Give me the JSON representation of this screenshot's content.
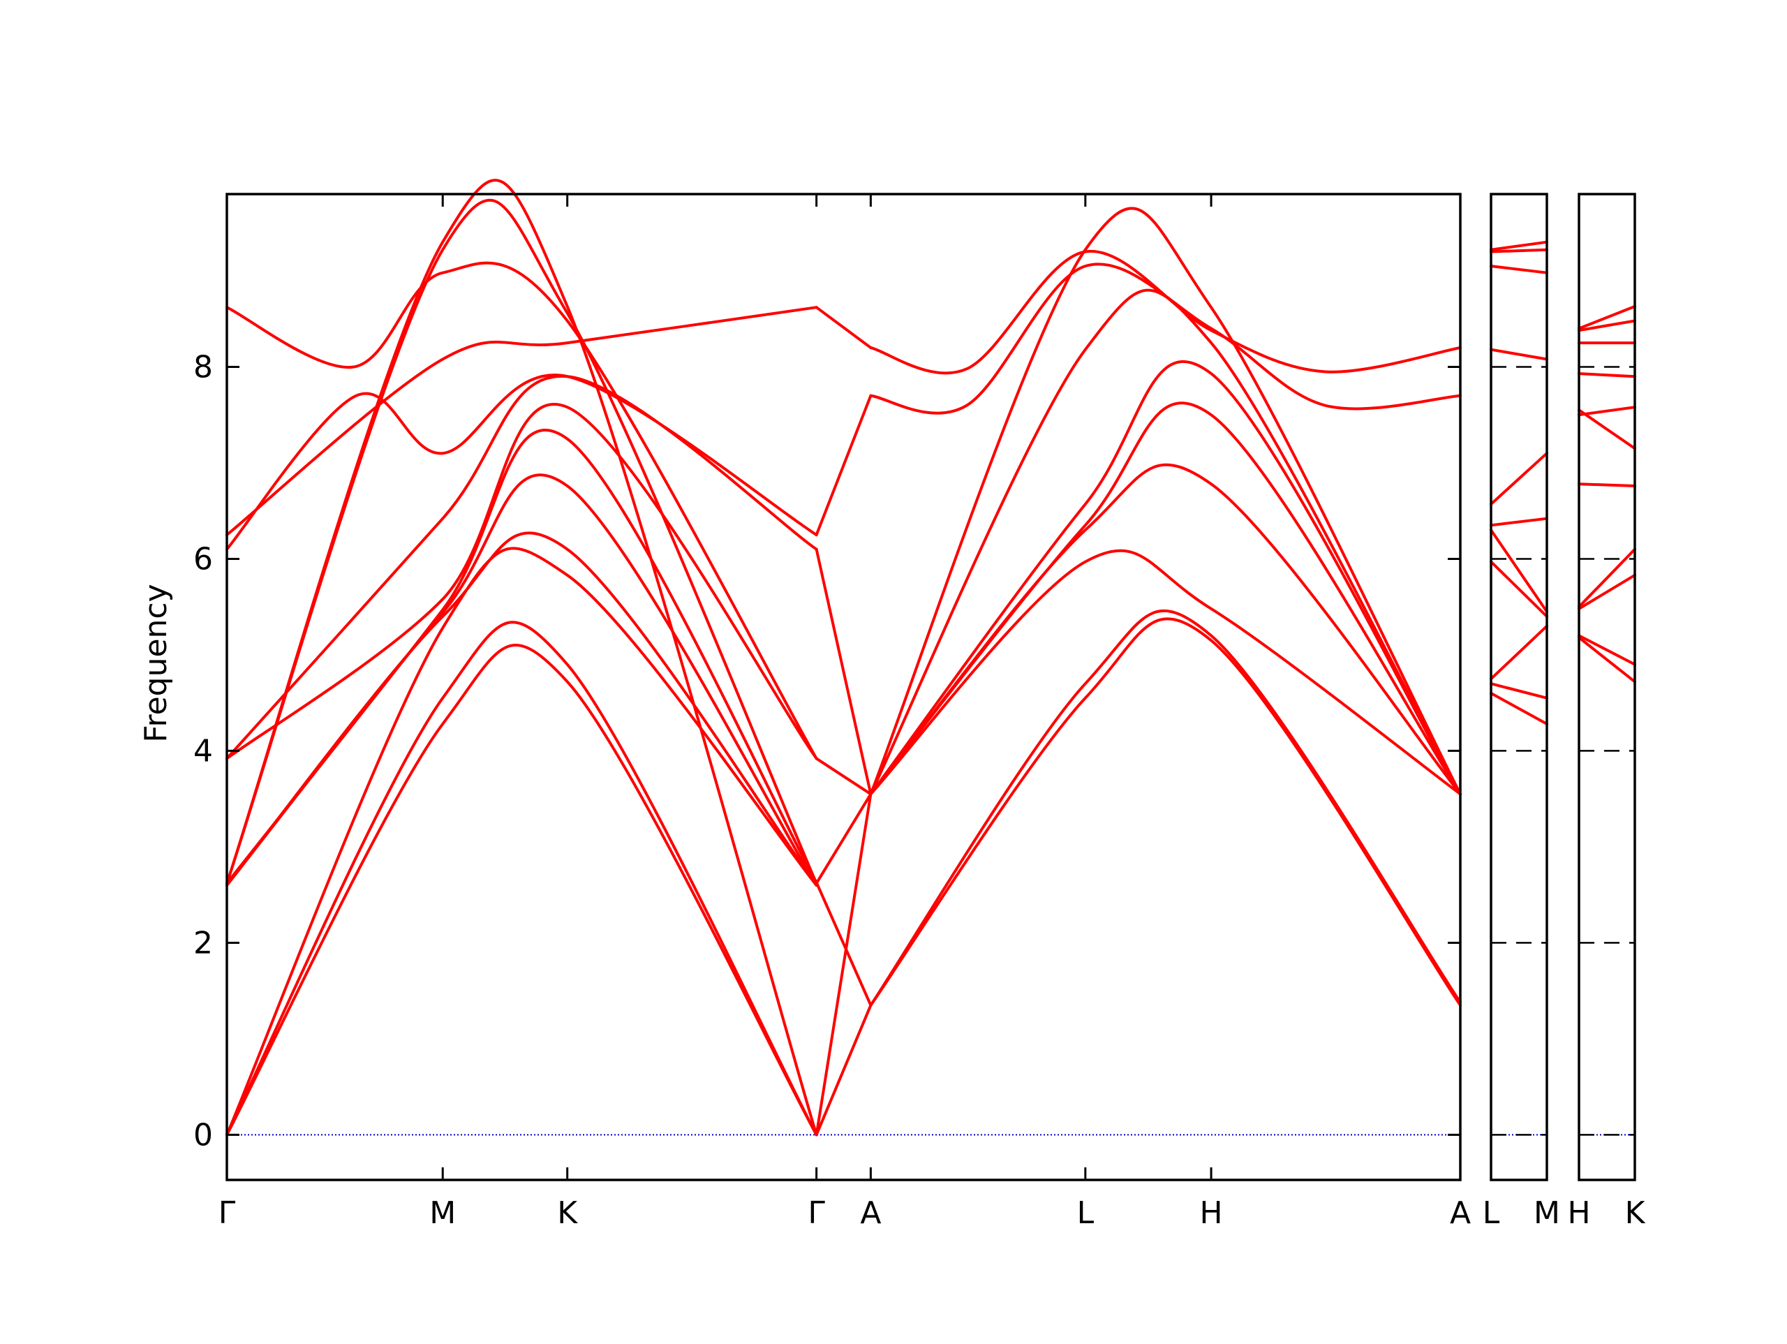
{
  "chart_data": {
    "type": "line",
    "title": "",
    "ylabel": "Frequency",
    "xlabel": "",
    "ylim": [
      -0.47,
      9.8
    ],
    "yticks": [
      0,
      2,
      4,
      6,
      8
    ],
    "grid": false,
    "legend": "none",
    "colors": {
      "bands": "#ff0000",
      "zero_line": "#0000cc",
      "axes": "#000000"
    },
    "panels": [
      {
        "labels": [
          "Γ",
          "M",
          "K",
          "Γ",
          "A",
          "L",
          "H",
          "A"
        ],
        "xrange": [
          0,
          100
        ],
        "label_x": [
          0,
          17.5,
          27.6,
          47.8,
          52.2,
          69.6,
          79.8,
          100
        ],
        "series": [
          {
            "x": [
              0,
              17.5,
              27.6,
              47.8
            ],
            "values": [
              0,
              4.28,
              4.72,
              0
            ]
          },
          {
            "x": [
              0,
              17.5,
              27.6,
              47.8
            ],
            "values": [
              0,
              4.55,
              4.9,
              0
            ]
          },
          {
            "x": [
              0,
              17.5,
              27.6,
              47.8
            ],
            "values": [
              0,
              5.28,
              5.83,
              2.6
            ]
          },
          {
            "x": [
              0,
              17.5,
              27.6,
              47.8
            ],
            "values": [
              2.6,
              5.4,
              6.1,
              2.6
            ]
          },
          {
            "x": [
              0,
              17.5,
              27.6,
              47.8
            ],
            "values": [
              2.6,
              5.44,
              6.76,
              2.6
            ]
          },
          {
            "x": [
              0,
              17.5,
              27.6,
              47.8
            ],
            "values": [
              2.62,
              5.47,
              7.25,
              2.63
            ]
          },
          {
            "x": [
              0,
              17.5,
              27.6,
              47.8
            ],
            "values": [
              3.92,
              5.58,
              7.58,
              3.92
            ]
          },
          {
            "x": [
              0,
              17.5,
              27.6,
              47.8
            ],
            "values": [
              3.92,
              6.42,
              7.9,
              6.1
            ]
          },
          {
            "x": [
              0,
              10.5,
              17.5,
              27.6,
              47.8
            ],
            "values": [
              6.1,
              7.7,
              7.1,
              7.9,
              6.25
            ]
          },
          {
            "x": [
              0,
              17.5,
              27.6,
              47.8
            ],
            "values": [
              6.25,
              8.08,
              8.25,
              8.62
            ]
          },
          {
            "x": [
              0,
              10.3,
              17.5,
              27.6,
              47.8
            ],
            "values": [
              8.62,
              8.0,
              8.98,
              8.48,
              3.92
            ]
          },
          {
            "x": [
              0,
              17.5,
              27.6,
              47.8
            ],
            "values": [
              2.62,
              9.22,
              8.56,
              2.62
            ]
          },
          {
            "x": [
              0,
              17.5,
              27.6,
              47.8
            ],
            "values": [
              2.62,
              9.3,
              8.63,
              0
            ]
          },
          {
            "x": [
              47.8,
              52.2
            ],
            "values": [
              8.62,
              8.2
            ]
          },
          {
            "x": [
              47.8,
              52.2
            ],
            "values": [
              6.25,
              7.7
            ]
          },
          {
            "x": [
              47.8,
              52.2
            ],
            "values": [
              6.1,
              3.55
            ]
          },
          {
            "x": [
              47.8,
              52.2
            ],
            "values": [
              3.92,
              3.55
            ]
          },
          {
            "x": [
              47.8,
              52.2
            ],
            "values": [
              2.63,
              1.35
            ]
          },
          {
            "x": [
              47.8,
              52.2
            ],
            "values": [
              2.62,
              3.55
            ]
          },
          {
            "x": [
              47.8,
              52.2
            ],
            "values": [
              0,
              3.55
            ]
          },
          {
            "x": [
              47.8,
              52.2
            ],
            "values": [
              0,
              1.35
            ]
          },
          {
            "x": [
              52.2,
              69.6,
              79.8,
              100
            ],
            "values": [
              1.35,
              4.55,
              5.15,
              1.35
            ]
          },
          {
            "x": [
              52.2,
              69.6,
              79.8,
              100
            ],
            "values": [
              1.35,
              4.7,
              5.2,
              1.38
            ]
          },
          {
            "x": [
              52.2,
              69.6,
              79.8,
              100
            ],
            "values": [
              3.55,
              5.97,
              5.48,
              3.55
            ]
          },
          {
            "x": [
              52.2,
              69.6,
              79.8,
              100
            ],
            "values": [
              3.55,
              6.3,
              6.78,
              3.55
            ]
          },
          {
            "x": [
              52.2,
              69.6,
              79.8,
              100
            ],
            "values": [
              3.55,
              6.35,
              7.5,
              3.55
            ]
          },
          {
            "x": [
              52.2,
              69.6,
              79.8,
              100
            ],
            "values": [
              3.55,
              6.57,
              7.93,
              3.55
            ]
          },
          {
            "x": [
              52.2,
              69.6,
              79.8,
              100
            ],
            "values": [
              3.55,
              8.18,
              8.25,
              3.55
            ]
          },
          {
            "x": [
              52.2,
              60.0,
              69.6,
              79.8,
              89.0,
              100
            ],
            "values": [
              7.7,
              7.6,
              9.05,
              8.4,
              7.6,
              7.7
            ]
          },
          {
            "x": [
              52.2,
              60.0,
              69.6,
              79.8,
              89.0,
              100
            ],
            "values": [
              8.2,
              7.98,
              9.2,
              8.38,
              7.95,
              8.2
            ]
          },
          {
            "x": [
              52.2,
              69.6,
              79.8,
              100
            ],
            "values": [
              3.55,
              9.22,
              8.62,
              3.55
            ]
          }
        ]
      },
      {
        "labels": [
          "L",
          "M"
        ],
        "xrange": [
          0,
          1
        ],
        "label_x": [
          0,
          1
        ],
        "series": [
          {
            "x": [
              0,
              1
            ],
            "values": [
              4.6,
              4.28
            ]
          },
          {
            "x": [
              0,
              1
            ],
            "values": [
              4.7,
              4.55
            ]
          },
          {
            "x": [
              0,
              1
            ],
            "values": [
              4.75,
              5.3
            ]
          },
          {
            "x": [
              0,
              1
            ],
            "values": [
              5.97,
              5.4
            ]
          },
          {
            "x": [
              0,
              1
            ],
            "values": [
              6.3,
              5.45
            ]
          },
          {
            "x": [
              0,
              1
            ],
            "values": [
              6.35,
              6.42
            ]
          },
          {
            "x": [
              0,
              1
            ],
            "values": [
              6.57,
              7.1
            ]
          },
          {
            "x": [
              0,
              1
            ],
            "values": [
              8.18,
              8.08
            ]
          },
          {
            "x": [
              0,
              1
            ],
            "values": [
              9.05,
              8.98
            ]
          },
          {
            "x": [
              0,
              1
            ],
            "values": [
              9.2,
              9.22
            ]
          },
          {
            "x": [
              0,
              1
            ],
            "values": [
              9.22,
              9.3
            ]
          }
        ]
      },
      {
        "labels": [
          "H",
          "K"
        ],
        "xrange": [
          0,
          1
        ],
        "label_x": [
          0,
          1
        ],
        "series": [
          {
            "x": [
              0,
              1
            ],
            "values": [
              5.18,
              4.72
            ]
          },
          {
            "x": [
              0,
              1
            ],
            "values": [
              5.2,
              4.9
            ]
          },
          {
            "x": [
              0,
              1
            ],
            "values": [
              5.48,
              5.83
            ]
          },
          {
            "x": [
              0,
              1
            ],
            "values": [
              5.5,
              6.1
            ]
          },
          {
            "x": [
              0,
              1
            ],
            "values": [
              6.78,
              6.76
            ]
          },
          {
            "x": [
              0,
              1
            ],
            "values": [
              7.5,
              7.58
            ]
          },
          {
            "x": [
              0,
              1
            ],
            "values": [
              7.55,
              7.15
            ]
          },
          {
            "x": [
              0,
              1
            ],
            "values": [
              7.93,
              7.9
            ]
          },
          {
            "x": [
              0,
              1
            ],
            "values": [
              8.25,
              8.25
            ]
          },
          {
            "x": [
              0,
              1
            ],
            "values": [
              8.38,
              8.48
            ]
          },
          {
            "x": [
              0,
              1
            ],
            "values": [
              8.4,
              8.63
            ]
          }
        ]
      }
    ]
  }
}
